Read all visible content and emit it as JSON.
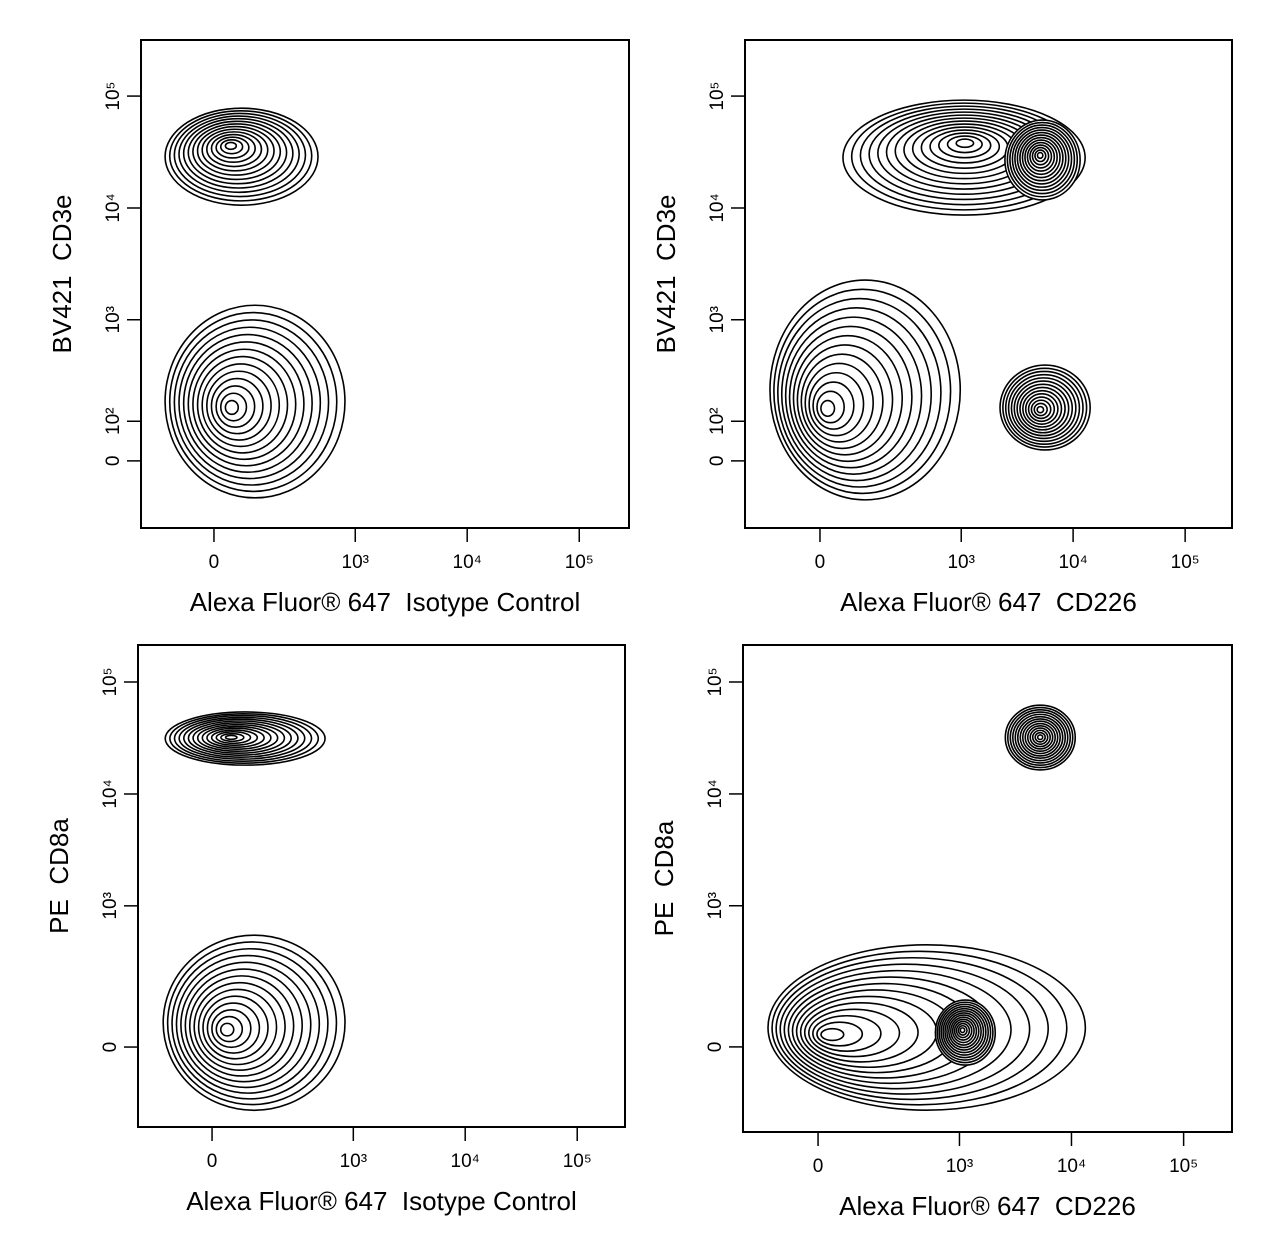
{
  "chart_data": [
    {
      "type": "contour",
      "xlabel": "Alexa Fluor® 647  Isotype Control",
      "ylabel": "BV421  CD3e",
      "xscale": "biexponential",
      "yscale": "biexponential",
      "xlim": [
        -234,
        278000
      ],
      "ylim": [
        -205,
        317000
      ],
      "xticks": [
        0,
        {
          "value": 1000,
          "label": "10³"
        },
        {
          "value": 10000,
          "label": "10⁴"
        },
        {
          "value": 100000,
          "label": "10⁵"
        }
      ],
      "yticks": [
        0,
        {
          "value": 100,
          "label": "10²"
        },
        {
          "value": 1000,
          "label": "10³"
        },
        {
          "value": 10000,
          "label": "10⁴"
        },
        {
          "value": 100000,
          "label": "10⁵"
        }
      ],
      "populations": [
        {
          "x": 37,
          "y": 36500,
          "x_range": [
            -130,
            460
          ],
          "y_range": [
            10600,
            78000
          ]
        },
        {
          "x": 37,
          "y": 145,
          "x_range": [
            -130,
            808
          ],
          "y_range": [
            -92,
            1350
          ]
        }
      ]
    },
    {
      "type": "contour",
      "xlabel": "Alexa Fluor® 647  CD226",
      "ylabel": "BV421  CD3e",
      "xscale": "biexponential",
      "yscale": "biexponential",
      "xlim": [
        -245,
        262000
      ],
      "ylim": [
        -205,
        317000
      ],
      "xticks": [
        0,
        {
          "value": 1000,
          "label": "10³"
        },
        {
          "value": 10000,
          "label": "10⁴"
        },
        {
          "value": 100000,
          "label": "10⁵"
        }
      ],
      "yticks": [
        0,
        {
          "value": 100,
          "label": "10²"
        },
        {
          "value": 1000,
          "label": "10³"
        },
        {
          "value": 10000,
          "label": "10⁴"
        },
        {
          "value": 100000,
          "label": "10⁵"
        }
      ],
      "populations": [
        {
          "x": 1080,
          "y": 38800,
          "x_range": [
            54,
            12800
          ],
          "y_range": [
            8640,
            92000
          ]
        },
        {
          "x": 5060,
          "y": 29700,
          "x_range": [
            2460,
            11550
          ],
          "y_range": [
            11800,
            61000
          ]
        },
        {
          "x": 11,
          "y": 138,
          "x_range": [
            -134,
            980
          ],
          "y_range": [
            -98,
            2270
          ]
        },
        {
          "x": 5060,
          "y": 138,
          "x_range": [
            2225,
            14200
          ],
          "y_range": [
            25,
            387
          ]
        }
      ]
    },
    {
      "type": "contour",
      "xlabel": "Alexa Fluor® 647  Isotype Control",
      "ylabel": "PE  CD8a",
      "xscale": "biexponential",
      "yscale": "biexponential",
      "xlim": [
        -240,
        267000
      ],
      "ylim": [
        -274,
        214000
      ],
      "xticks": [
        0,
        {
          "value": 1000,
          "label": "10³"
        },
        {
          "value": 10000,
          "label": "10⁴"
        },
        {
          "value": 100000,
          "label": "10⁵"
        }
      ],
      "yticks": [
        0,
        {
          "value": 1000,
          "label": "10³"
        },
        {
          "value": 10000,
          "label": "10⁴"
        },
        {
          "value": 100000,
          "label": "10⁵"
        }
      ],
      "populations": [
        {
          "x": 42,
          "y": 32100,
          "x_range": [
            -123,
            556
          ],
          "y_range": [
            18100,
            54000
          ]
        },
        {
          "x": 30,
          "y": 39,
          "x_range": [
            -130,
            842
          ],
          "y_range": [
            -187,
            543
          ]
        }
      ]
    },
    {
      "type": "contour",
      "xlabel": "Alexa Fluor® 647  CD226",
      "ylabel": "PE  CD8a",
      "xscale": "biexponential",
      "yscale": "biexponential",
      "xlim": [
        -245,
        270000
      ],
      "ylim": [
        -307,
        214000
      ],
      "xticks": [
        0,
        {
          "value": 1000,
          "label": "10³"
        },
        {
          "value": 10000,
          "label": "10⁴"
        },
        {
          "value": 100000,
          "label": "10⁵"
        }
      ],
      "yticks": [
        0,
        {
          "value": 1000,
          "label": "10³"
        },
        {
          "value": 10000,
          "label": "10⁴"
        },
        {
          "value": 100000,
          "label": "10⁵"
        }
      ],
      "populations": [
        {
          "x": 5260,
          "y": 32100,
          "x_range": [
            2570,
            10800
          ],
          "y_range": [
            16400,
            62000
          ]
        },
        {
          "x": 16,
          "y": 27,
          "x_range": [
            -134,
            13300
          ],
          "y_range": [
            -187,
            442
          ]
        },
        {
          "x": 1060,
          "y": 39,
          "x_range": [
            607,
            2090
          ],
          "y_range": [
            -42,
            123
          ]
        }
      ]
    }
  ]
}
